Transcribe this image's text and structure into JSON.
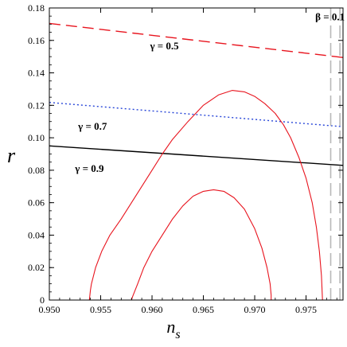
{
  "chart_data": {
    "type": "line",
    "xlabel_main": "n",
    "xlabel_sub": "s",
    "ylabel": "r",
    "xlim": [
      0.95,
      0.9786
    ],
    "ylim": [
      0,
      0.18
    ],
    "x_ticks": [
      "0.950",
      "0.955",
      "0.960",
      "0.965",
      "0.970",
      "0.975"
    ],
    "x_tick_values": [
      0.95,
      0.955,
      0.96,
      0.965,
      0.97,
      0.975
    ],
    "y_ticks": [
      "0",
      "0.02",
      "0.04",
      "0.06",
      "0.08",
      "0.10",
      "0.12",
      "0.14",
      "0.16",
      "0.18"
    ],
    "y_tick_values": [
      0,
      0.02,
      0.04,
      0.06,
      0.08,
      0.1,
      0.12,
      0.14,
      0.16,
      0.18
    ],
    "series": [
      {
        "label": "γ = 0.5",
        "color": "#e8141e",
        "style": "dashed",
        "x": [
          0.95,
          0.9786
        ],
        "y": [
          0.1705,
          0.1495
        ]
      },
      {
        "label": "γ = 0.7",
        "color": "#2846d8",
        "style": "dotted",
        "x": [
          0.95,
          0.9786
        ],
        "y": [
          0.1218,
          0.1068
        ]
      },
      {
        "label": "γ = 0.9",
        "color": "#000000",
        "style": "solid",
        "x": [
          0.95,
          0.9786
        ],
        "y": [
          0.095,
          0.083
        ]
      }
    ],
    "vertical_lines": [
      {
        "label": "β = 0.1",
        "color": "#b8b8b8",
        "style": "dashed",
        "x": [
          0.9774,
          0.9783
        ]
      }
    ],
    "contours": [
      {
        "color": "#e8141e",
        "x": [
          0.958,
          0.9581,
          0.9586,
          0.9592,
          0.96,
          0.961,
          0.962,
          0.963,
          0.964,
          0.965,
          0.966,
          0.967,
          0.968,
          0.969,
          0.97,
          0.9707,
          0.9712,
          0.9715,
          0.9716,
          0.9716
        ],
        "y": [
          0,
          0.002,
          0.01,
          0.02,
          0.03,
          0.04,
          0.05,
          0.058,
          0.064,
          0.067,
          0.068,
          0.067,
          0.063,
          0.056,
          0.044,
          0.032,
          0.02,
          0.01,
          0.003,
          0
        ]
      },
      {
        "color": "#e8141e",
        "x": [
          0.9539,
          0.954,
          0.9541,
          0.9545,
          0.9551,
          0.9559,
          0.957,
          0.958,
          0.959,
          0.96,
          0.961,
          0.962,
          0.9635,
          0.965,
          0.9665,
          0.9678,
          0.969,
          0.97,
          0.971,
          0.972,
          0.9728,
          0.9735,
          0.9743,
          0.975,
          0.9756,
          0.976,
          0.9763,
          0.9765,
          0.9766
        ],
        "y": [
          0,
          0.006,
          0.01,
          0.02,
          0.03,
          0.04,
          0.05,
          0.06,
          0.07,
          0.08,
          0.09,
          0.099,
          0.11,
          0.12,
          0.1265,
          0.1292,
          0.1283,
          0.1255,
          0.121,
          0.115,
          0.108,
          0.1,
          0.088,
          0.075,
          0.06,
          0.045,
          0.03,
          0.015,
          0
        ]
      }
    ],
    "annotations": [
      {
        "text": "γ = 0.5",
        "x": 0.9598,
        "y": 0.1545
      },
      {
        "text": "γ = 0.7",
        "x": 0.9528,
        "y": 0.105
      },
      {
        "text": "γ = 0.9",
        "x": 0.9525,
        "y": 0.079
      },
      {
        "text": "β = 0.1",
        "x": 0.9759,
        "y": 0.1725
      }
    ]
  }
}
